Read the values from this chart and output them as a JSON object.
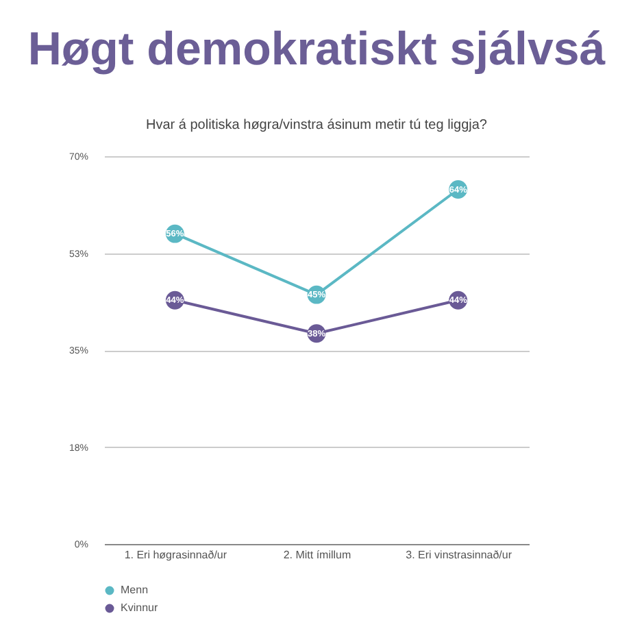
{
  "chart_data": {
    "type": "line",
    "title": "Høgt demokratiskt sjálvsá",
    "subtitle": "Hvar á politiska høgra/vinstra ásinum metir tú teg liggja?",
    "categories": [
      "1. Eri høgrasinnað/ur",
      "2. Mitt ímillum",
      "3. Eri vinstrasinnað/ur"
    ],
    "series": [
      {
        "name": "Menn",
        "color": "#5bb8c4",
        "values": [
          56,
          45,
          64
        ],
        "value_labels": [
          "56%",
          "45%",
          "64%"
        ]
      },
      {
        "name": "Kvinnur",
        "color": "#6a5a96",
        "values": [
          44,
          38,
          44
        ],
        "value_labels": [
          "44%",
          "38%",
          "44%"
        ]
      }
    ],
    "ylim": [
      0,
      70
    ],
    "yticks": [
      {
        "value": 0,
        "label": "0%"
      },
      {
        "value": 17.5,
        "label": "18%"
      },
      {
        "value": 35,
        "label": "35%"
      },
      {
        "value": 52.5,
        "label": "53%"
      },
      {
        "value": 70,
        "label": "70%"
      }
    ],
    "grid": "y",
    "legend": "bottom",
    "marker": "circle"
  }
}
